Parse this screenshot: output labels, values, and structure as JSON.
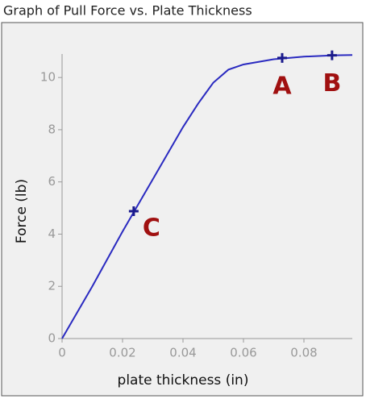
{
  "chart_data": {
    "type": "line",
    "title": "Graph of Pull Force vs. Plate Thickness",
    "x_label": "plate thickness (in)",
    "y_label": "Force (lb)",
    "x": [
      0,
      0.01,
      0.02,
      0.03,
      0.04,
      0.045,
      0.05,
      0.055,
      0.06,
      0.07,
      0.08,
      0.09,
      0.096
    ],
    "series": [
      {
        "color": "#2a2ac0",
        "values": [
          0,
          2.0,
          4.1,
          6.1,
          8.1,
          9.0,
          9.8,
          10.3,
          10.5,
          10.7,
          10.8,
          10.85,
          10.86
        ]
      }
    ],
    "points": [
      {
        "label": "A",
        "x": 0.0728,
        "y": 10.75
      },
      {
        "label": "B",
        "x": 0.0893,
        "y": 10.85
      },
      {
        "label": "C",
        "x": 0.0237,
        "y": 4.88
      }
    ],
    "marker_color": "#1a1a8c",
    "label_color": "#a01010",
    "xlim": [
      0,
      0.096
    ],
    "ylim": [
      0,
      10.9
    ],
    "xticks": [
      0,
      0.02,
      0.04,
      0.06,
      0.08
    ],
    "yticks": [
      0,
      2,
      4,
      6,
      8,
      10
    ],
    "grid": false
  }
}
